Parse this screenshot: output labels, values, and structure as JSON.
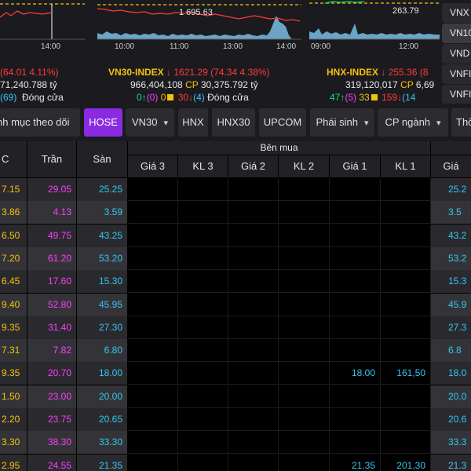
{
  "index_panels": [
    {
      "name": "",
      "value_label": "",
      "time_labels": [
        "14:00"
      ],
      "change_text": "(64.01  4.11%)",
      "volume": "71,240.788 tỷ",
      "adv": "(69)",
      "status": "Đóng cửa",
      "colors": {
        "up": "#36c5f4"
      }
    },
    {
      "name": "VN30-INDEX",
      "arrow": "↓",
      "value": "1621.29",
      "change": "(74.34  4.38%)",
      "value_label": "1 695.63",
      "time_labels": [
        "10:00",
        "11:00",
        "13:00",
        "14:00"
      ],
      "volume": "966,404,108",
      "cp_label": "CP",
      "value_bn": "30,375.792 tỷ",
      "up": "0",
      "up_count": "(0)",
      "ref": "0",
      "down": "30",
      "down_count": "(4)",
      "status": "Đóng cửa"
    },
    {
      "name": "HNX-INDEX",
      "arrow": "↓",
      "value": "255.36",
      "change": "(8",
      "value_label": "263.79",
      "time_labels": [
        "09:00",
        "12:00"
      ],
      "volume": "319,120,017",
      "cp_label": "CP",
      "value_bn": "6,69",
      "up": "47",
      "up_count": "(5)",
      "ref": "33",
      "down": "159",
      "down_count": "(14"
    }
  ],
  "right_list": [
    "VNX",
    "VN10",
    "VND",
    "VNFI",
    "VNFI"
  ],
  "tabs": [
    {
      "label": "nh mục theo dõi",
      "dropdown": false,
      "active": false
    },
    {
      "label": "HOSE",
      "dropdown": false,
      "active": true
    },
    {
      "label": "VN30",
      "dropdown": true,
      "active": false
    },
    {
      "label": "HNX",
      "dropdown": false,
      "active": false
    },
    {
      "label": "HNX30",
      "dropdown": false,
      "active": false
    },
    {
      "label": "UPCOM",
      "dropdown": false,
      "active": false
    },
    {
      "label": "Phái sinh",
      "dropdown": true,
      "active": false
    },
    {
      "label": "CP ngành",
      "dropdown": true,
      "active": false
    },
    {
      "label": "Thô",
      "dropdown": false,
      "active": false
    }
  ],
  "table": {
    "headers": {
      "tc": "C",
      "tran": "Trần",
      "san": "Sàn",
      "ben_mua": "Bên mua",
      "gia3": "Giá 3",
      "kl3": "KL 3",
      "gia2": "Giá 2",
      "kl2": "KL 2",
      "gia1": "Giá 1",
      "kl1": "KL 1",
      "gia_right": "Giá"
    },
    "rows": [
      {
        "tc": "7.15",
        "tran": "29.05",
        "san": "25.25",
        "gia1": "",
        "kl1": "",
        "right": "25.2"
      },
      {
        "tc": "3.86",
        "tran": "4.13",
        "san": "3.59",
        "gia1": "",
        "kl1": "",
        "right": "3.5"
      },
      {
        "tc": "6.50",
        "tran": "49.75",
        "san": "43.25",
        "gia1": "",
        "kl1": "",
        "right": "43.2"
      },
      {
        "tc": "7.20",
        "tran": "61.20",
        "san": "53.20",
        "gia1": "",
        "kl1": "",
        "right": "53.2"
      },
      {
        "tc": "6.45",
        "tran": "17.60",
        "san": "15.30",
        "gia1": "",
        "kl1": "",
        "right": "15.3"
      },
      {
        "tc": "9.40",
        "tran": "52.80",
        "san": "45.95",
        "gia1": "",
        "kl1": "",
        "right": "45.9"
      },
      {
        "tc": "9.35",
        "tran": "31.40",
        "san": "27.30",
        "gia1": "",
        "kl1": "",
        "right": "27.3"
      },
      {
        "tc": "7.31",
        "tran": "7.82",
        "san": "6.80",
        "gia1": "",
        "kl1": "",
        "right": "6.8"
      },
      {
        "tc": "9.35",
        "tran": "20.70",
        "san": "18.00",
        "gia1": "18.00",
        "kl1": "161,50",
        "right": "18.0"
      },
      {
        "tc": "1.50",
        "tran": "23.00",
        "san": "20.00",
        "gia1": "",
        "kl1": "",
        "right": "20.0"
      },
      {
        "tc": "2.20",
        "tran": "23.75",
        "san": "20.65",
        "gia1": "",
        "kl1": "",
        "right": "20.6"
      },
      {
        "tc": "3.30",
        "tran": "38.30",
        "san": "33.30",
        "gia1": "",
        "kl1": "",
        "right": "33.3"
      },
      {
        "tc": "2.95",
        "tran": "24.55",
        "san": "21.35",
        "gia1": "21.35",
        "kl1": "201,30",
        "right": "21.3"
      }
    ]
  },
  "colors": {
    "ref": "#f4c20d",
    "ceiling": "#ff3dff",
    "floor": "#36c5f4",
    "down": "#ff3b3b",
    "up": "#00e676",
    "active_tab": "#8a2be2"
  }
}
